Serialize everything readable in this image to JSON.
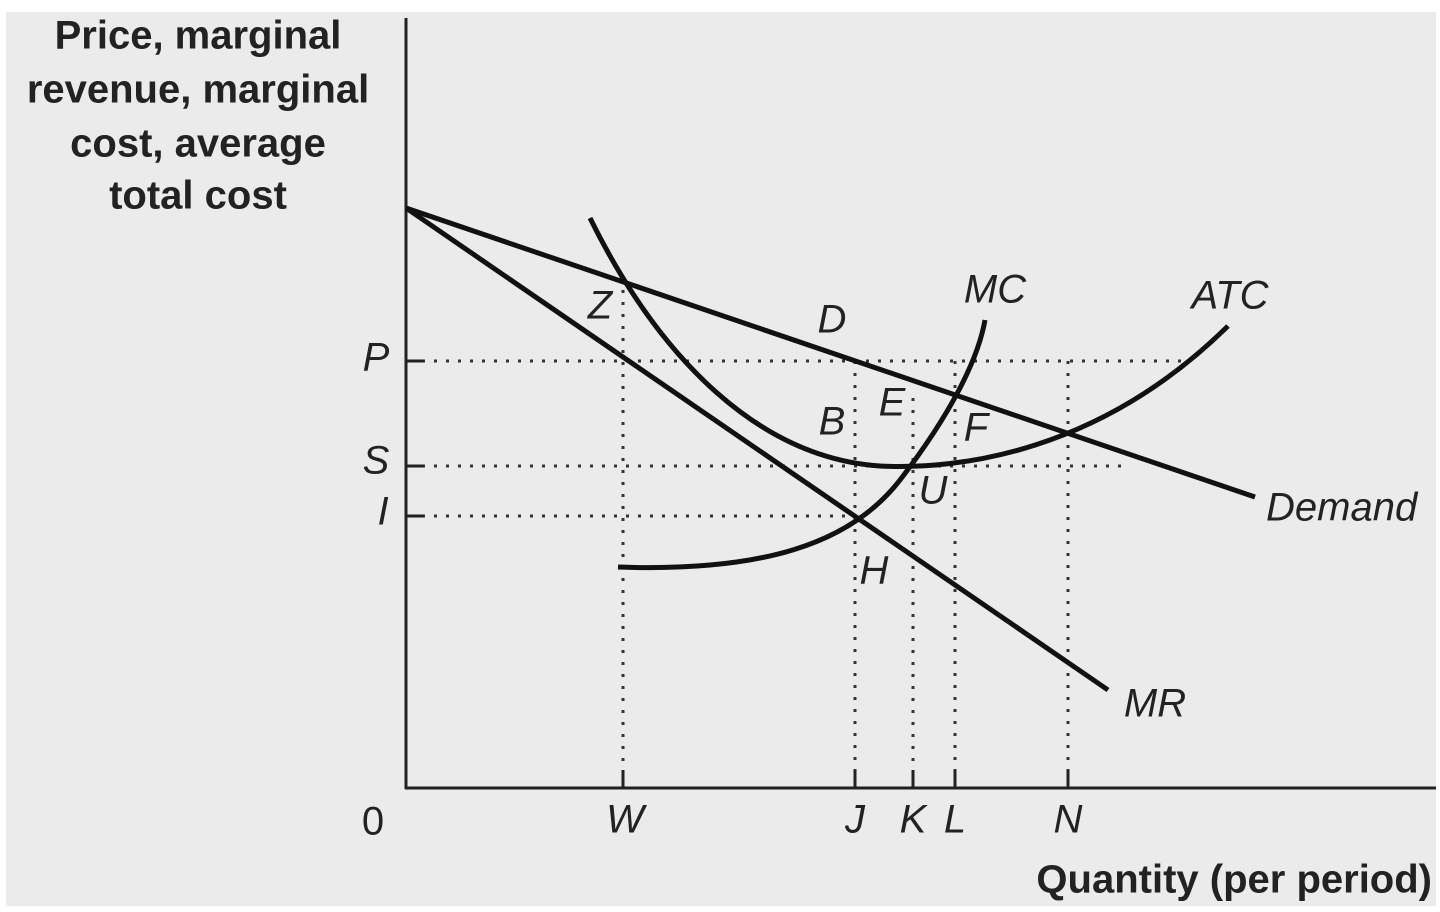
{
  "axes": {
    "y_title": [
      "Price, marginal",
      "revenue, marginal",
      "cost, average",
      "total cost"
    ],
    "x_title": "Quantity (per period)",
    "origin": "0",
    "x_ticks": [
      "W",
      "J",
      "K",
      "L",
      "N"
    ],
    "y_ticks": [
      "P",
      "S",
      "I"
    ]
  },
  "curves": {
    "mc": "MC",
    "atc": "ATC",
    "demand": "Demand",
    "mr": "MR"
  },
  "points": [
    "Z",
    "D",
    "E",
    "B",
    "F",
    "U",
    "H"
  ]
}
